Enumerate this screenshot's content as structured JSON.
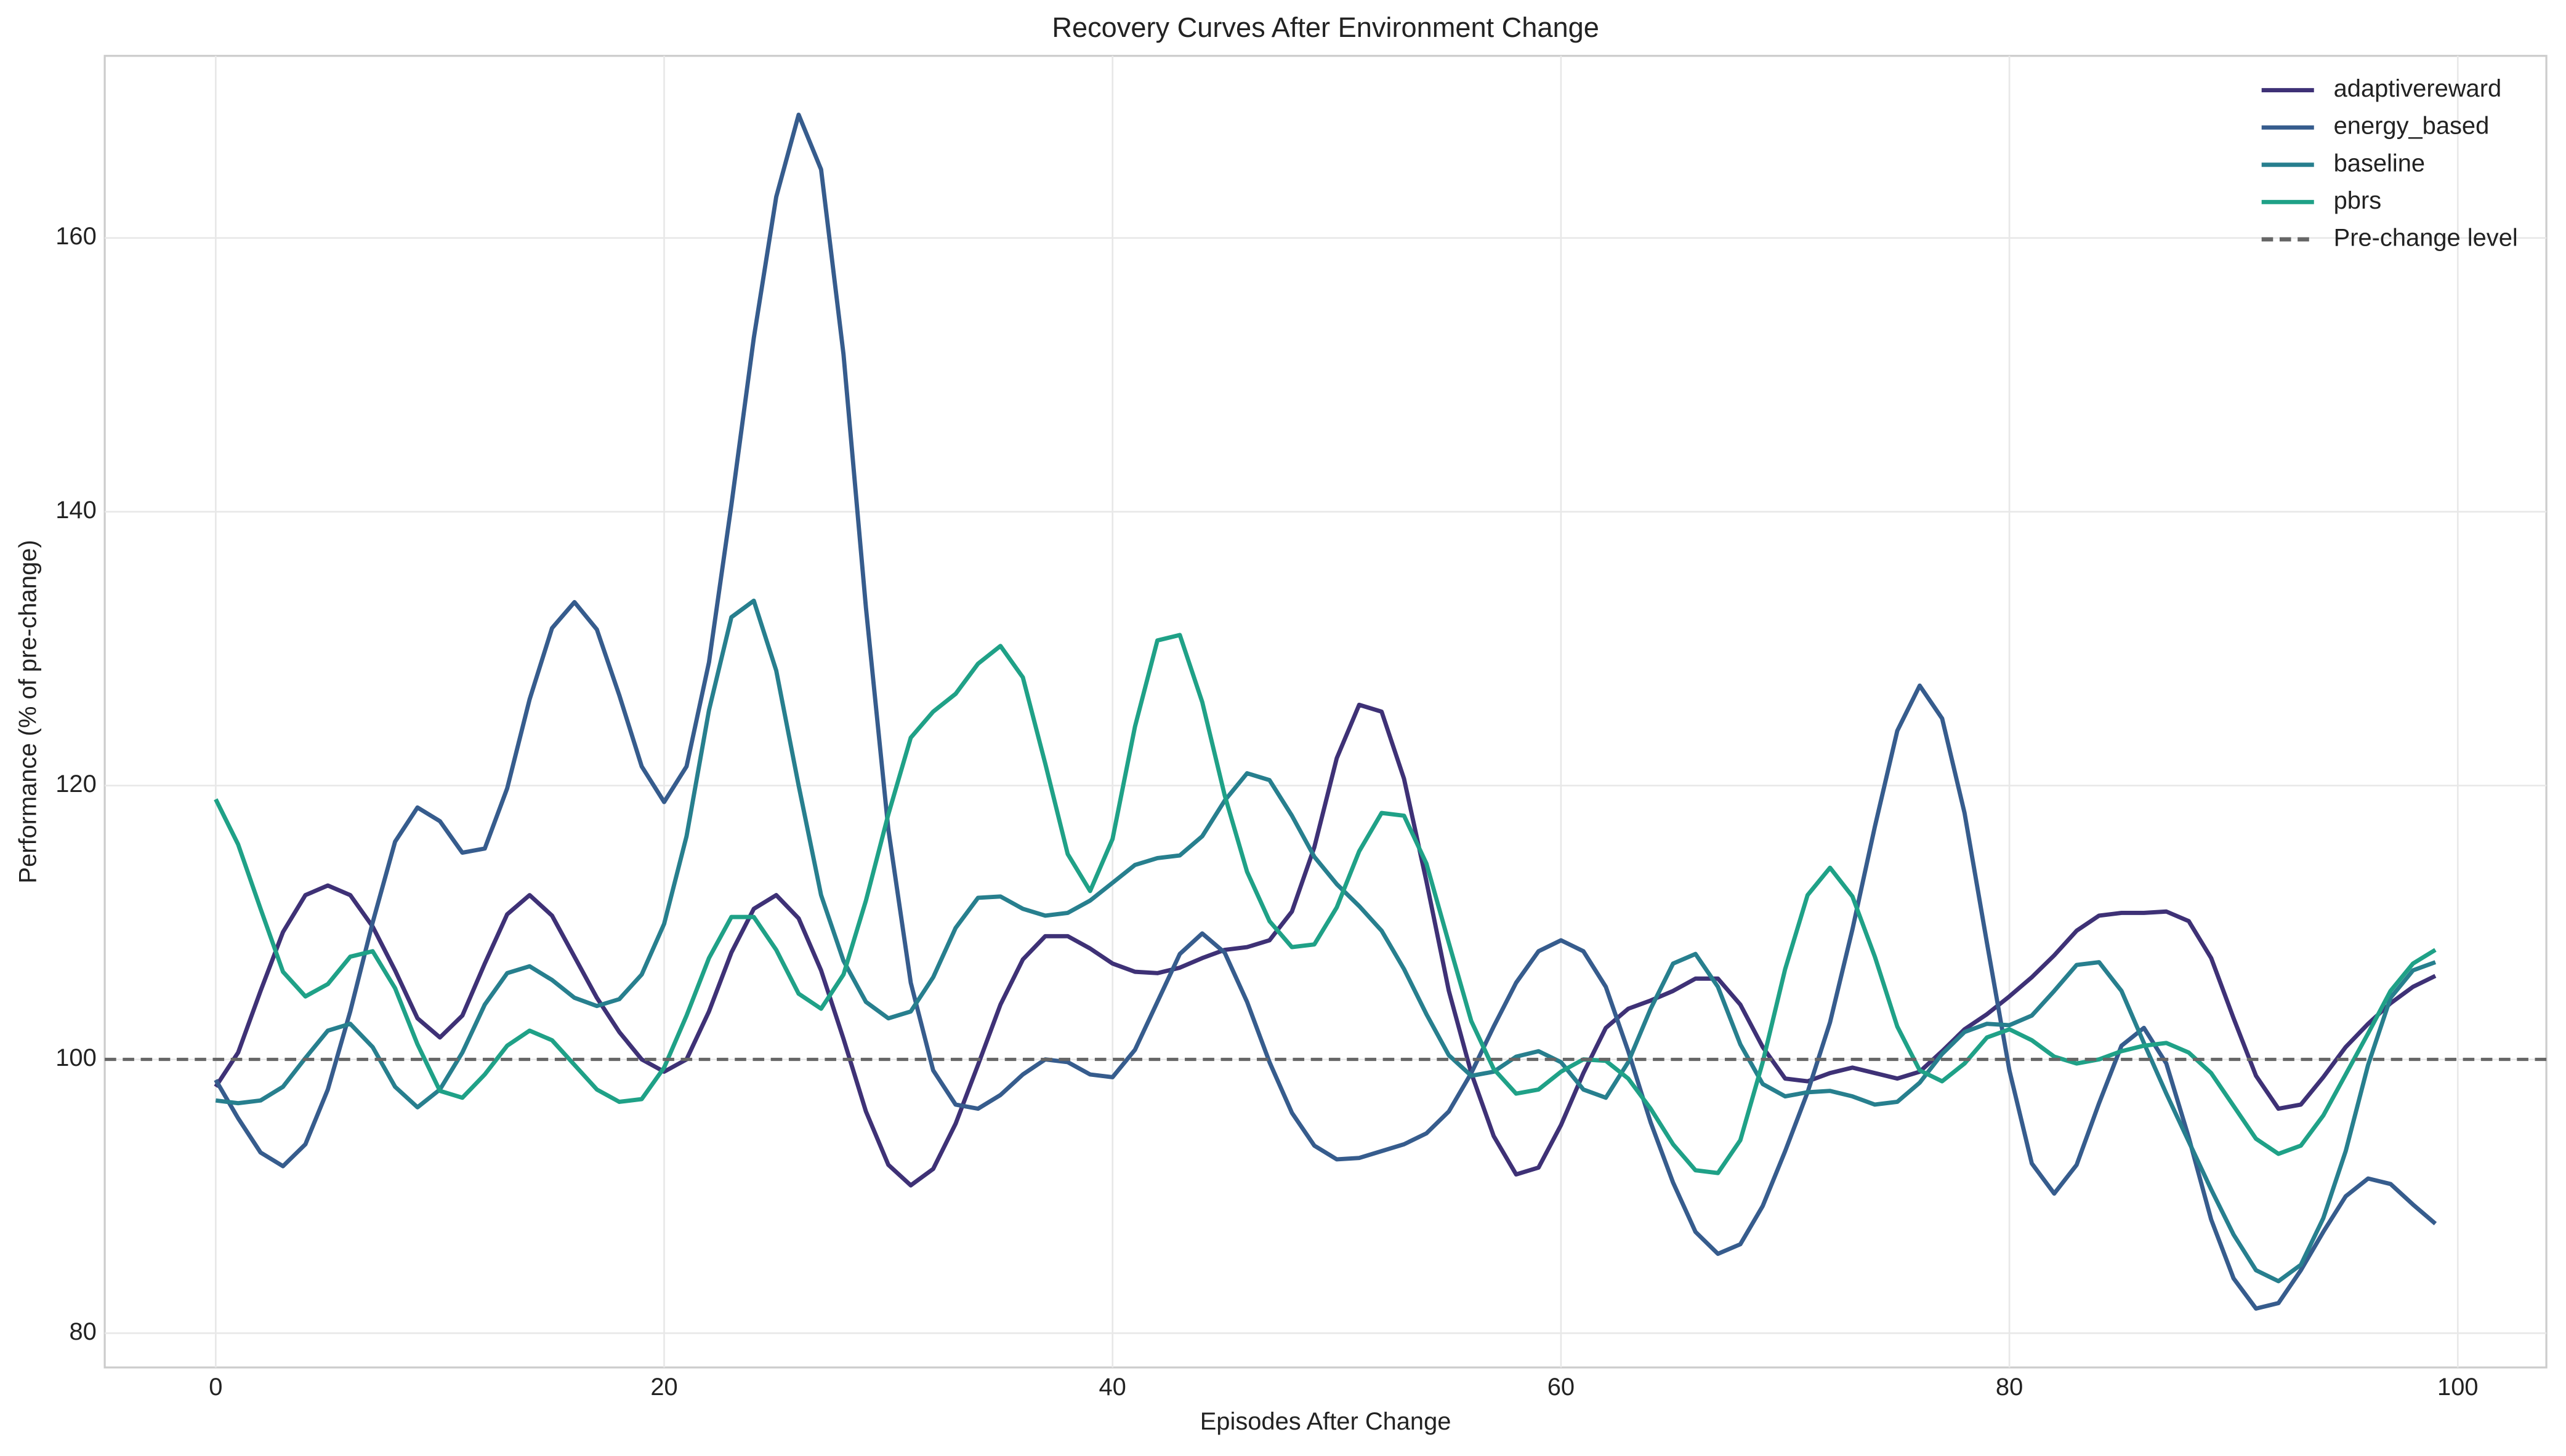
{
  "chart_data": {
    "type": "line",
    "title": "Recovery Curves After Environment Change",
    "x_label": "Episodes After Change",
    "y_label": "Performance (% of pre-change)",
    "x": [
      0,
      1,
      2,
      3,
      4,
      5,
      6,
      7,
      8,
      9,
      10,
      11,
      12,
      13,
      14,
      15,
      16,
      17,
      18,
      19,
      20,
      21,
      22,
      23,
      24,
      25,
      26,
      27,
      28,
      29,
      30,
      31,
      32,
      33,
      34,
      35,
      36,
      37,
      38,
      39,
      40,
      41,
      42,
      43,
      44,
      45,
      46,
      47,
      48,
      49,
      50,
      51,
      52,
      53,
      54,
      55,
      56,
      57,
      58,
      59,
      60,
      61,
      62,
      63,
      64,
      65,
      66,
      67,
      68,
      69,
      70,
      71,
      72,
      73,
      74,
      75,
      76,
      77,
      78,
      79,
      80,
      81,
      82,
      83,
      84,
      85,
      86,
      87,
      88,
      89,
      90,
      91,
      92,
      93,
      94,
      95,
      96,
      97,
      98,
      99
    ],
    "xlim": [
      -4.95,
      103.95
    ],
    "xticks": [
      0,
      20,
      40,
      60,
      80,
      100
    ],
    "ylim": [
      77.5,
      173.3
    ],
    "yticks": [
      80,
      100,
      120,
      140,
      160
    ],
    "grid": true,
    "legend": "upper right",
    "series": [
      {
        "name": "adaptivereward",
        "color": "#3e3176",
        "values": [
          98,
          100.5,
          105,
          109.3,
          112,
          112.7,
          112,
          109.7,
          106.5,
          103,
          101.6,
          103.2,
          107,
          110.6,
          112,
          110.5,
          107.5,
          104.5,
          102,
          100,
          99.1,
          100,
          103.5,
          107.8,
          111,
          112,
          110.3,
          106.5,
          101.5,
          96.2,
          92.3,
          90.8,
          92,
          95.3,
          99.6,
          104,
          107.3,
          109,
          109,
          108.1,
          107,
          106.4,
          106.3,
          106.7,
          107.4,
          108,
          108.2,
          108.7,
          110.8,
          115.5,
          122,
          125.9,
          125.4,
          120.5,
          113,
          105,
          99,
          94.4,
          91.6,
          92.1,
          95.2,
          99,
          102.3,
          103.7,
          104.3,
          105,
          105.9,
          105.9,
          104,
          100.9,
          98.6,
          98.4,
          99,
          99.4,
          99,
          98.6,
          99.1,
          100.6,
          102.2,
          103.3,
          104.6,
          106,
          107.6,
          109.4,
          110.5,
          110.7,
          110.7,
          110.8,
          110.1,
          107.4,
          103,
          98.8,
          96.4,
          96.7,
          98.7,
          100.9,
          102.6,
          104.1,
          105.3,
          106.1
        ]
      },
      {
        "name": "energy_based",
        "color": "#365c8d",
        "values": [
          98.5,
          95.7,
          93.2,
          92.2,
          93.8,
          97.8,
          103.5,
          110,
          115.9,
          118.4,
          117.4,
          115.1,
          115.4,
          119.8,
          126.3,
          131.5,
          133.4,
          131.4,
          126.6,
          121.4,
          118.8,
          121.4,
          129,
          140.5,
          152.7,
          163,
          169,
          165,
          151.5,
          133,
          116.8,
          105.6,
          99.2,
          96.7,
          96.4,
          97.4,
          98.9,
          100,
          99.8,
          98.9,
          98.7,
          100.7,
          104.2,
          107.7,
          109.2,
          107.8,
          104.2,
          99.8,
          96.1,
          93.7,
          92.7,
          92.8,
          93.3,
          93.8,
          94.6,
          96.2,
          99,
          102.4,
          105.6,
          107.9,
          108.7,
          107.9,
          105.3,
          100.6,
          95.4,
          91,
          87.4,
          85.8,
          86.5,
          89.3,
          93.3,
          97.6,
          102.7,
          109.5,
          117,
          124,
          127.3,
          124.9,
          118,
          108.5,
          99.2,
          92.4,
          90.2,
          92.3,
          96.8,
          101,
          102.3,
          99.7,
          94.3,
          88.3,
          84,
          81.8,
          82.2,
          84.6,
          87.4,
          90,
          91.3,
          90.9,
          89.4,
          88
        ]
      },
      {
        "name": "baseline",
        "color": "#277f8e",
        "values": [
          97,
          96.8,
          97,
          98,
          100.1,
          102.1,
          102.6,
          100.9,
          98,
          96.5,
          97.8,
          100.5,
          104,
          106.3,
          106.8,
          105.8,
          104.5,
          103.9,
          104.4,
          106.2,
          109.9,
          116.3,
          125.5,
          132.3,
          133.5,
          128.4,
          120,
          112,
          107.2,
          104.2,
          103,
          103.5,
          106,
          109.6,
          111.8,
          111.9,
          111,
          110.5,
          110.7,
          111.6,
          112.9,
          114.2,
          114.7,
          114.9,
          116.3,
          118.9,
          120.9,
          120.4,
          117.8,
          114.8,
          112.8,
          111.2,
          109.4,
          106.6,
          103.3,
          100.3,
          98.8,
          99.1,
          100.2,
          100.6,
          99.8,
          97.8,
          97.2,
          99.8,
          103.7,
          107,
          107.7,
          105.3,
          101.1,
          98.2,
          97.3,
          97.6,
          97.7,
          97.3,
          96.7,
          96.9,
          98.3,
          100.4,
          102,
          102.6,
          102.5,
          103.2,
          105,
          106.9,
          107.1,
          105,
          101.2,
          97.5,
          94,
          90.5,
          87.2,
          84.6,
          83.8,
          85,
          88.4,
          93.3,
          99.6,
          104.5,
          106.5,
          107.1
        ]
      },
      {
        "name": "pbrs",
        "color": "#1fa187",
        "values": [
          119,
          115.7,
          111,
          106.4,
          104.6,
          105.5,
          107.5,
          107.9,
          105.2,
          101.1,
          97.7,
          97.2,
          98.9,
          101,
          102.1,
          101.4,
          99.6,
          97.8,
          96.9,
          97.1,
          99.4,
          103.2,
          107.4,
          110.4,
          110.4,
          108,
          104.8,
          103.7,
          106.2,
          111.6,
          117.9,
          123.5,
          125.4,
          126.7,
          128.9,
          130.2,
          127.9,
          121.6,
          115,
          112.3,
          116.1,
          124.3,
          130.6,
          131,
          126.1,
          119.3,
          113.7,
          110.1,
          108.2,
          108.4,
          111.1,
          115.2,
          118,
          117.8,
          114.3,
          108.5,
          102.8,
          99.3,
          97.5,
          97.8,
          99.1,
          100,
          99.9,
          98.6,
          96.4,
          93.8,
          91.9,
          91.7,
          94.1,
          99.8,
          106.6,
          112,
          114,
          111.9,
          107.5,
          102.4,
          99.2,
          98.4,
          99.7,
          101.6,
          102.2,
          101.4,
          100.2,
          99.7,
          100,
          100.6,
          101,
          101.2,
          100.5,
          99,
          96.6,
          94.2,
          93.1,
          93.7,
          95.9,
          98.9,
          101.9,
          105,
          107,
          108
        ]
      }
    ],
    "reference_line": {
      "value": 100,
      "label": "Pre-change level",
      "color": "#666666",
      "linestyle": "dashed"
    }
  }
}
